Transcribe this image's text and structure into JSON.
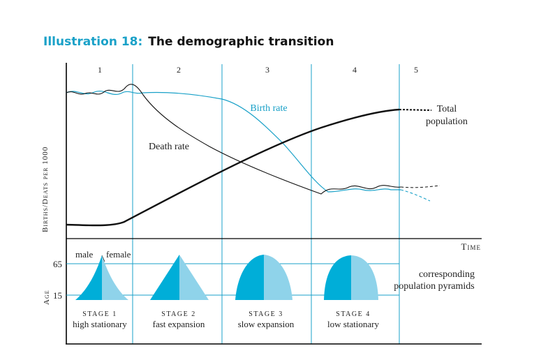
{
  "title": {
    "prefix": "Illustration 18:",
    "text": "The demographic transition"
  },
  "colors": {
    "accent": "#1aa1c8",
    "pyramid_dark": "#00aed8",
    "pyramid_light": "#8fd3ea",
    "axis": "#000000",
    "text": "#222222"
  },
  "stages": [
    "1",
    "2",
    "3",
    "4",
    "5"
  ],
  "y_axis_label": "Births/Deats per 1000",
  "x_axis_label": "Time",
  "curves": {
    "birth_rate": "Birth rate",
    "death_rate": "Death rate",
    "total_population_line1": "Total",
    "total_population_line2": "population"
  },
  "pyramids": {
    "age_label": "Age",
    "age_65": "65",
    "age_15": "15",
    "male": "male",
    "female": "female",
    "corresponding_line1": "corresponding",
    "corresponding_line2": "population pyramids",
    "stage_cards": [
      {
        "stage": "Stage 1",
        "desc": "high stationary"
      },
      {
        "stage": "Stage 2",
        "desc": "fast expansion"
      },
      {
        "stage": "Stage 3",
        "desc": "slow expansion"
      },
      {
        "stage": "Stage 4",
        "desc": "low stationary"
      }
    ]
  }
}
